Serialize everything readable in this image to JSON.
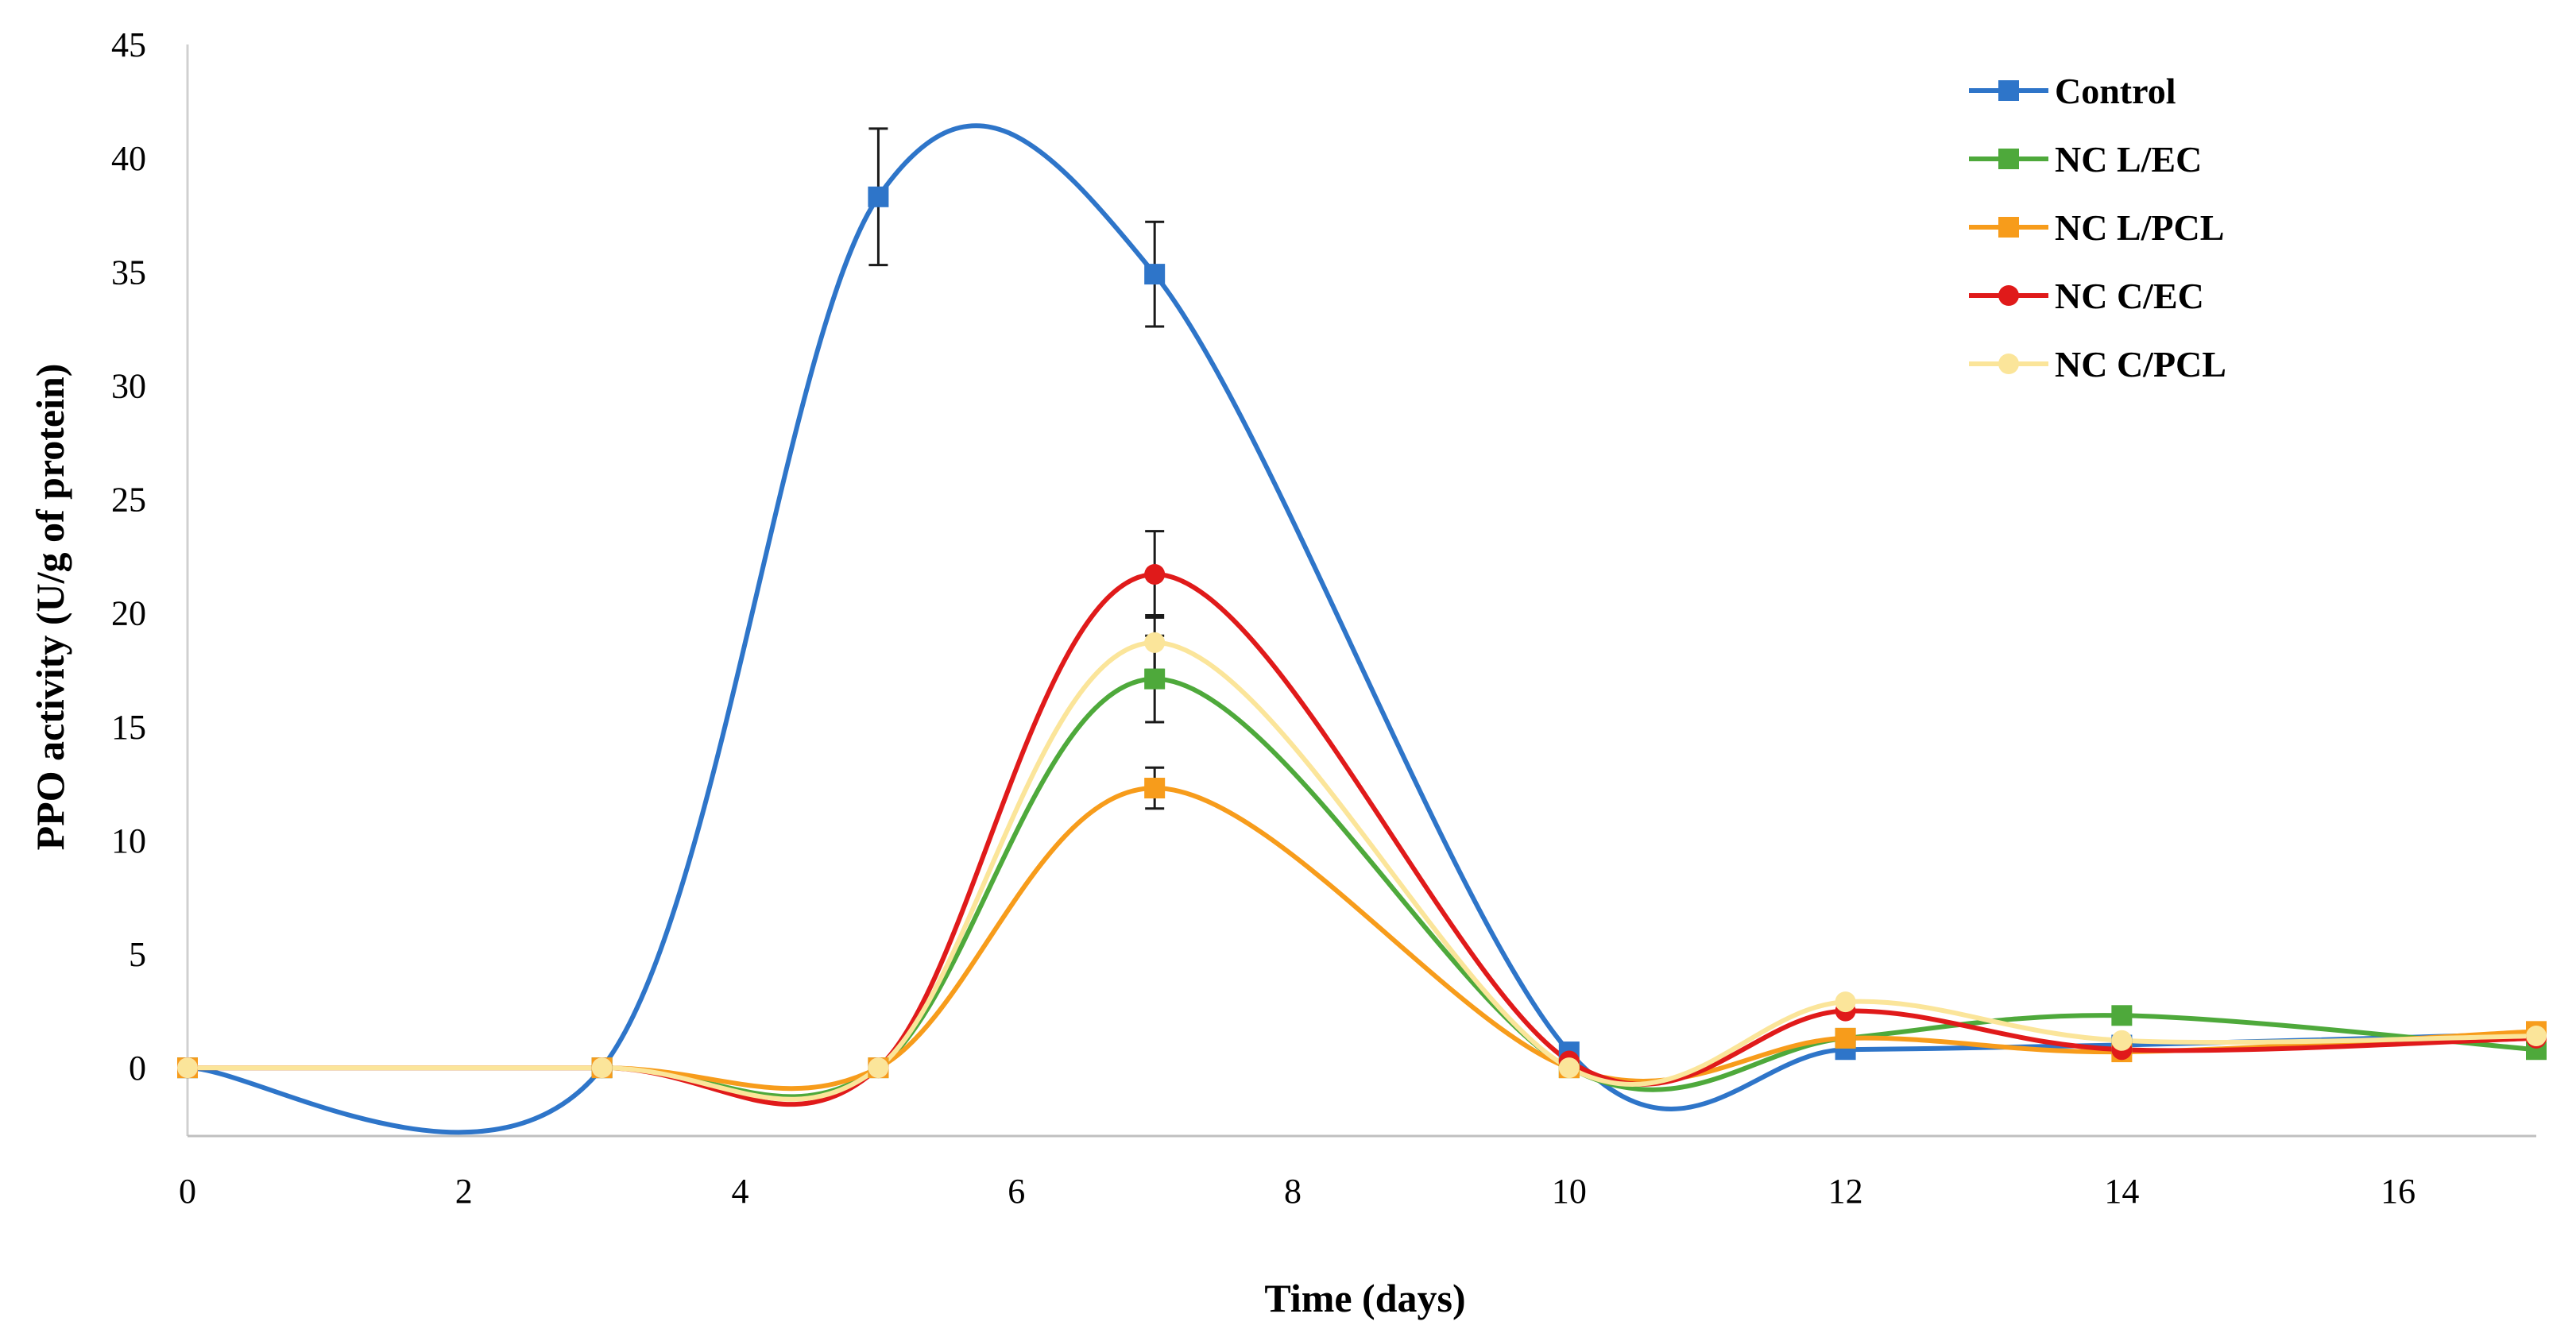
{
  "chart_data": {
    "type": "line",
    "title": "",
    "xlabel": "Time (days)",
    "ylabel": "PPO activity  (U/g of protein)",
    "xlim": [
      0,
      17
    ],
    "ylim": [
      -3,
      45
    ],
    "xticks": [
      0,
      2,
      4,
      6,
      8,
      10,
      12,
      14,
      16
    ],
    "yticks": [
      0,
      5,
      10,
      15,
      20,
      25,
      30,
      35,
      40,
      45
    ],
    "x_axis_at_y": -3,
    "legend_position": "top-right",
    "grid": false,
    "smooth": true,
    "series": [
      {
        "name": "Control",
        "color": "#2E75C9",
        "marker": "square",
        "x": [
          0,
          3,
          5,
          7,
          10,
          12,
          14,
          17
        ],
        "y": [
          0,
          0,
          38.3,
          34.9,
          0.7,
          0.8,
          1.0,
          1.5
        ],
        "err": [
          0,
          0,
          3.0,
          2.3,
          0,
          0,
          0,
          0
        ]
      },
      {
        "name": "NC L/EC",
        "color": "#4EA93B",
        "marker": "square",
        "x": [
          0,
          3,
          5,
          7,
          10,
          12,
          14,
          17
        ],
        "y": [
          0,
          0,
          0,
          17.1,
          0,
          1.3,
          2.3,
          0.8
        ],
        "err": [
          0,
          0,
          0,
          1.9,
          0,
          0,
          0,
          0
        ]
      },
      {
        "name": "NC L/PCL",
        "color": "#F79C1B",
        "marker": "square",
        "x": [
          0,
          3,
          5,
          7,
          10,
          12,
          14,
          17
        ],
        "y": [
          0,
          0,
          0,
          12.3,
          0,
          1.3,
          0.7,
          1.6
        ],
        "err": [
          0,
          0,
          0,
          0.9,
          0,
          0,
          0,
          0
        ]
      },
      {
        "name": "NC C/EC",
        "color": "#E01A1A",
        "marker": "circle",
        "x": [
          0,
          3,
          5,
          7,
          10,
          12,
          14,
          17
        ],
        "y": [
          0,
          0,
          0,
          21.7,
          0.3,
          2.5,
          0.8,
          1.3
        ],
        "err": [
          0,
          0,
          0,
          1.9,
          0,
          0,
          0,
          0
        ]
      },
      {
        "name": "NC C/PCL",
        "color": "#FBE59A",
        "marker": "circle",
        "x": [
          0,
          3,
          5,
          7,
          10,
          12,
          14,
          17
        ],
        "y": [
          0,
          0,
          0,
          18.7,
          0,
          2.9,
          1.2,
          1.4
        ],
        "err": [
          0,
          0,
          0,
          1.2,
          0,
          0,
          0,
          0
        ]
      }
    ]
  }
}
